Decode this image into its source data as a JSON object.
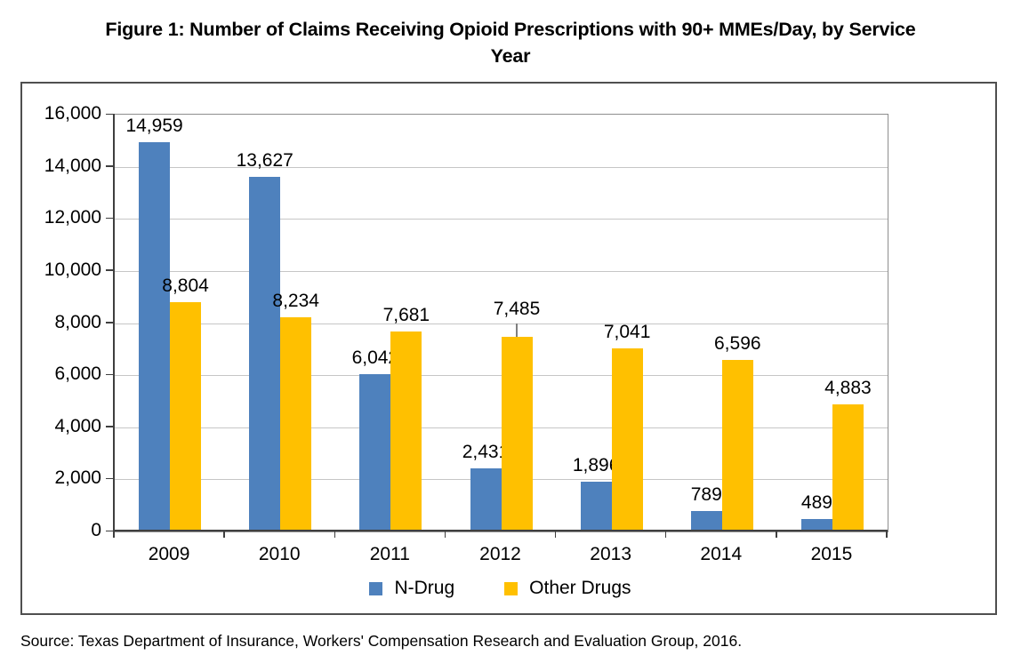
{
  "figure": {
    "title_line1": "Figure 1: Number of Claims Receiving Opioid Prescriptions with 90+ MMEs/Day, by Service",
    "title_line2": "Year",
    "source": "Source: Texas Department of Insurance, Workers' Compensation Research and Evaluation Group, 2016."
  },
  "colors": {
    "n_drug_blue": "#4E81BD",
    "other_drugs_yellow": "#FFC000",
    "gridline": "#C6C6C6",
    "axis_line": "#3F3F3F",
    "plot_border": "#8E8E8E",
    "chart_frame_border": "#4F4F4F",
    "label_text": "#000000"
  },
  "chart_data": {
    "type": "bar",
    "title": "Figure 1: Number of Claims Receiving Opioid Prescriptions with 90+ MMEs/Day, by Service Year",
    "categories": [
      "2009",
      "2010",
      "2011",
      "2012",
      "2013",
      "2014",
      "2015"
    ],
    "series": [
      {
        "name": "N-Drug",
        "color": "#4E81BD",
        "values": [
          14959,
          13627,
          6042,
          2431,
          1896,
          789,
          489
        ],
        "labels": [
          "14,959",
          "13,627",
          "6,042",
          "2,431",
          "1,896",
          "789",
          "489"
        ]
      },
      {
        "name": "Other Drugs",
        "color": "#FFC000",
        "values": [
          8804,
          8234,
          7681,
          7485,
          7041,
          6596,
          4883
        ],
        "labels": [
          "8,804",
          "8,234",
          "7,681",
          "7,485",
          "7,041",
          "6,596",
          "4,883"
        ]
      }
    ],
    "xlabel": "",
    "ylabel": "",
    "ylim": [
      0,
      16000
    ],
    "ytick_step": 2000,
    "ytick_labels": [
      "0",
      "2,000",
      "4,000",
      "6,000",
      "8,000",
      "10,000",
      "12,000",
      "14,000",
      "16,000"
    ],
    "grid": true,
    "legend_position": "bottom",
    "annotations": [
      {
        "type": "leader-line",
        "series": "Other Drugs",
        "category": "2012"
      }
    ]
  }
}
